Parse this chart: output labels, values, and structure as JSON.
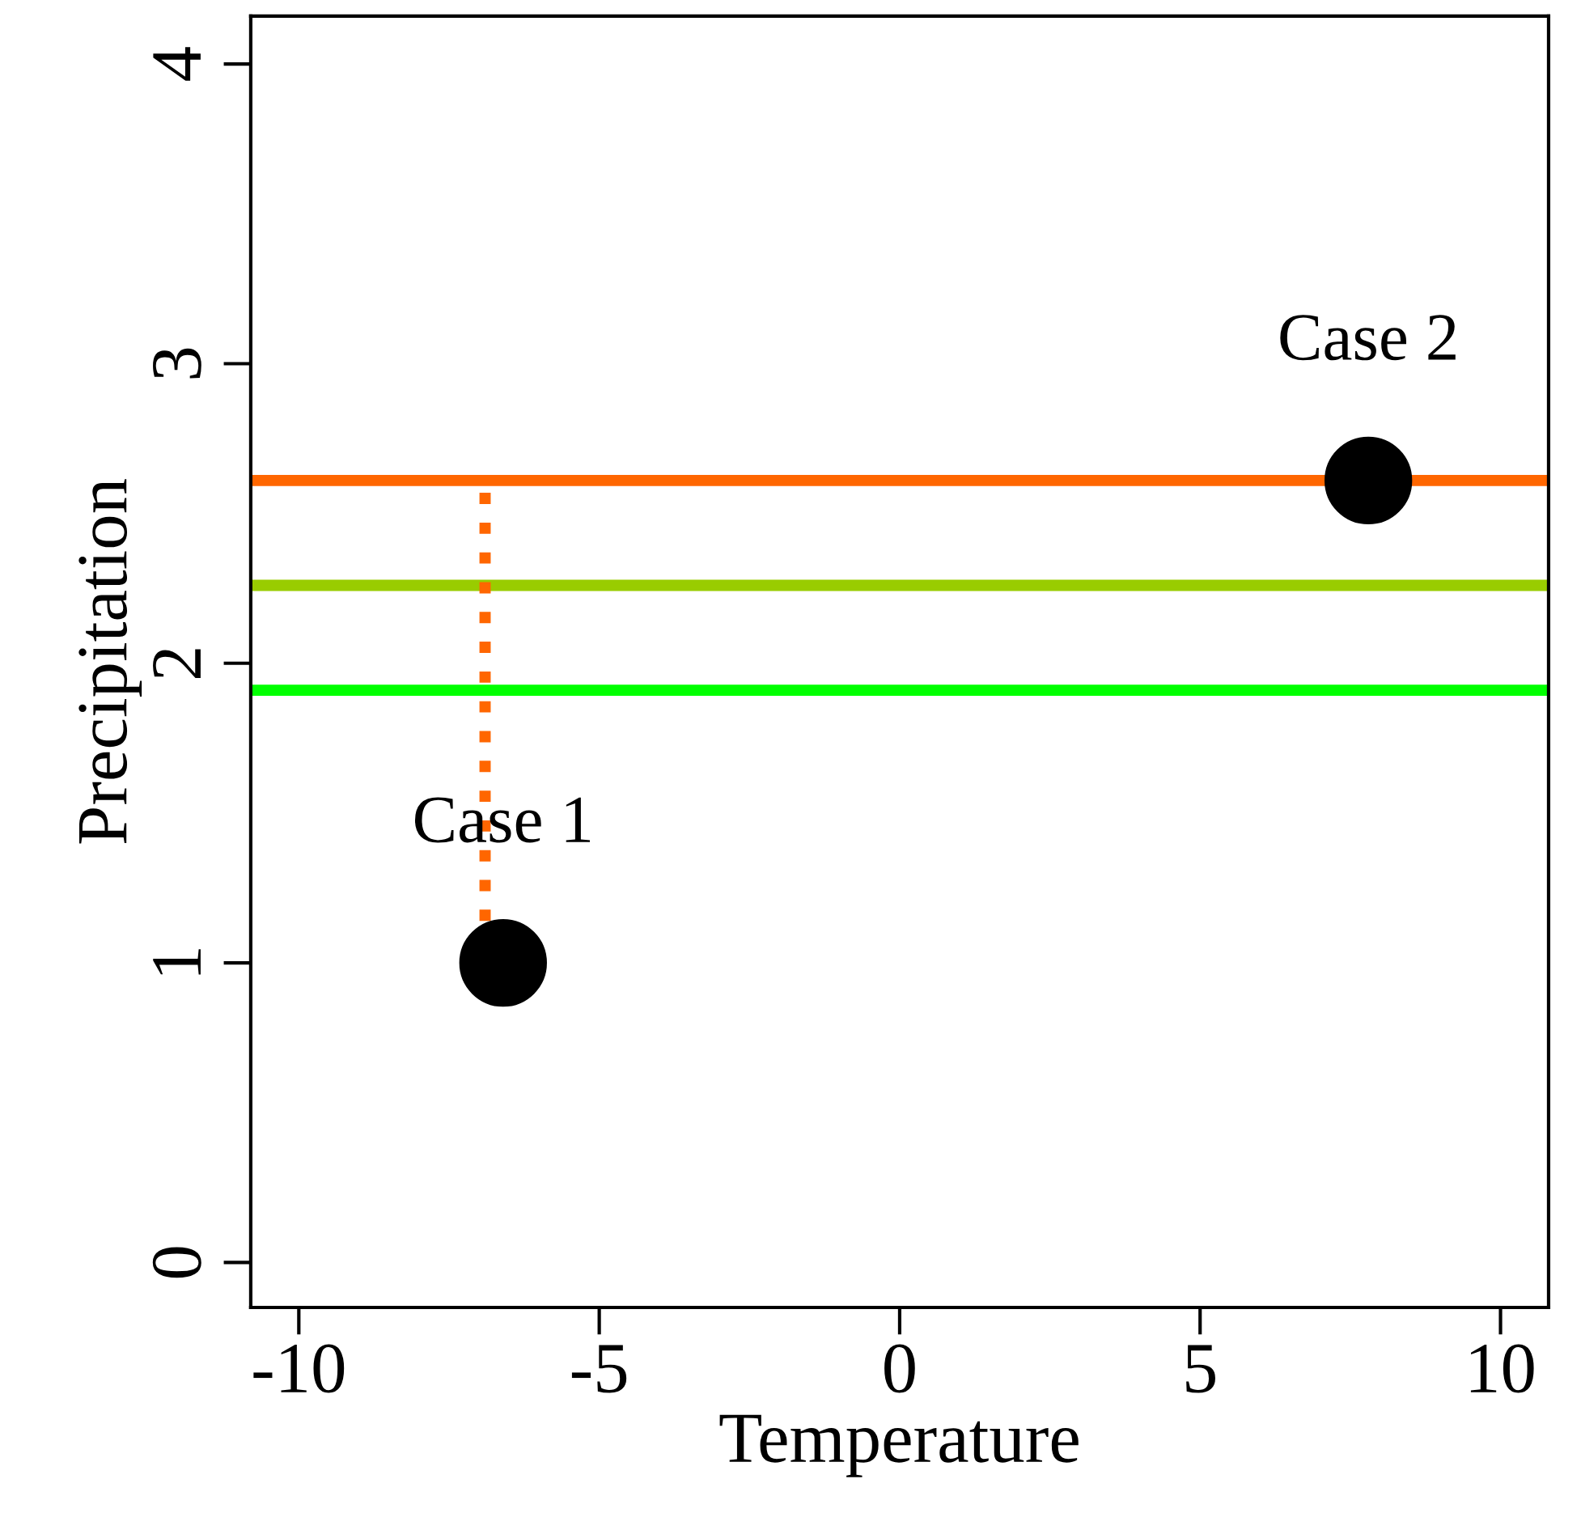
{
  "chart_data": {
    "type": "scatter",
    "xlabel": "Temperature",
    "ylabel": "Precipitation",
    "series": [
      {
        "x": [
          -6.6,
          7.8
        ],
        "values": [
          1.0,
          2.61
        ],
        "color": "#000000",
        "marker": "circle"
      },
      {
        "type": "line",
        "x": [
          -6.9,
          -6.9
        ],
        "values": [
          1.14,
          2.61
        ],
        "color": "#ff6600",
        "line_style": "dotted",
        "marker": "none"
      }
    ],
    "ref_lines": [
      {
        "axis": "y",
        "value": 2.61,
        "color": "#ff6600",
        "line_style": "solid"
      },
      {
        "axis": "y",
        "value": 2.26,
        "color": "#99cc00",
        "line_style": "solid"
      },
      {
        "axis": "y",
        "value": 1.91,
        "color": "#00ff00",
        "line_style": "solid"
      }
    ],
    "annotations": [
      {
        "text": "Case 1",
        "x": -6.6,
        "y": 1.0
      },
      {
        "text": "Case 2",
        "x": 7.8,
        "y": 2.61
      }
    ],
    "xlim": [
      -10.8,
      10.8
    ],
    "ylim": [
      -0.15,
      4.16
    ],
    "xticks": [
      -10,
      -5,
      0,
      5,
      10
    ],
    "yticks": [
      0,
      1,
      2,
      3,
      4
    ],
    "grid": false
  }
}
